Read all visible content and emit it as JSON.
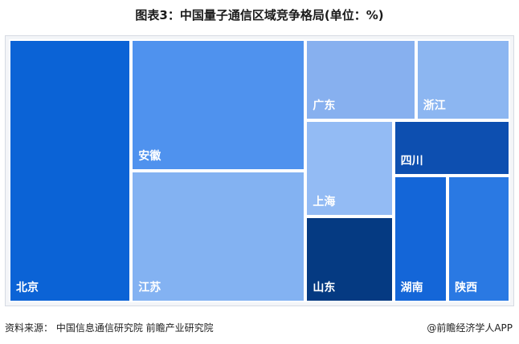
{
  "title": "图表3：中国量子通信区域竞争格局(单位：%)",
  "footer": {
    "source": "资料来源：  中国信息通信研究院  前瞻产业研究院",
    "credit": "@前瞻经济学人APP"
  },
  "chart_data": {
    "type": "treemap",
    "title": "图表3：中国量子通信区域竞争格局(单位：%)",
    "unit": "%",
    "items": [
      {
        "name": "北京",
        "value": 24.4,
        "color": "#0b63d6"
      },
      {
        "name": "安徽",
        "value": 17.4,
        "color": "#4f92ee"
      },
      {
        "name": "江苏",
        "value": 17.4,
        "color": "#83b2f2"
      },
      {
        "name": "广东",
        "value": 6.8,
        "color": "#87b0ef"
      },
      {
        "name": "浙江",
        "value": 5.8,
        "color": "#8cb6f1"
      },
      {
        "name": "上海",
        "value": 6.4,
        "color": "#93bbf4"
      },
      {
        "name": "山东",
        "value": 5.7,
        "color": "#053a82"
      },
      {
        "name": "四川",
        "value": 4.9,
        "color": "#0d4fb0"
      },
      {
        "name": "湖南",
        "value": 5.2,
        "color": "#1466d8"
      },
      {
        "name": "陕西",
        "value": 6.0,
        "color": "#2a79e3"
      }
    ]
  }
}
